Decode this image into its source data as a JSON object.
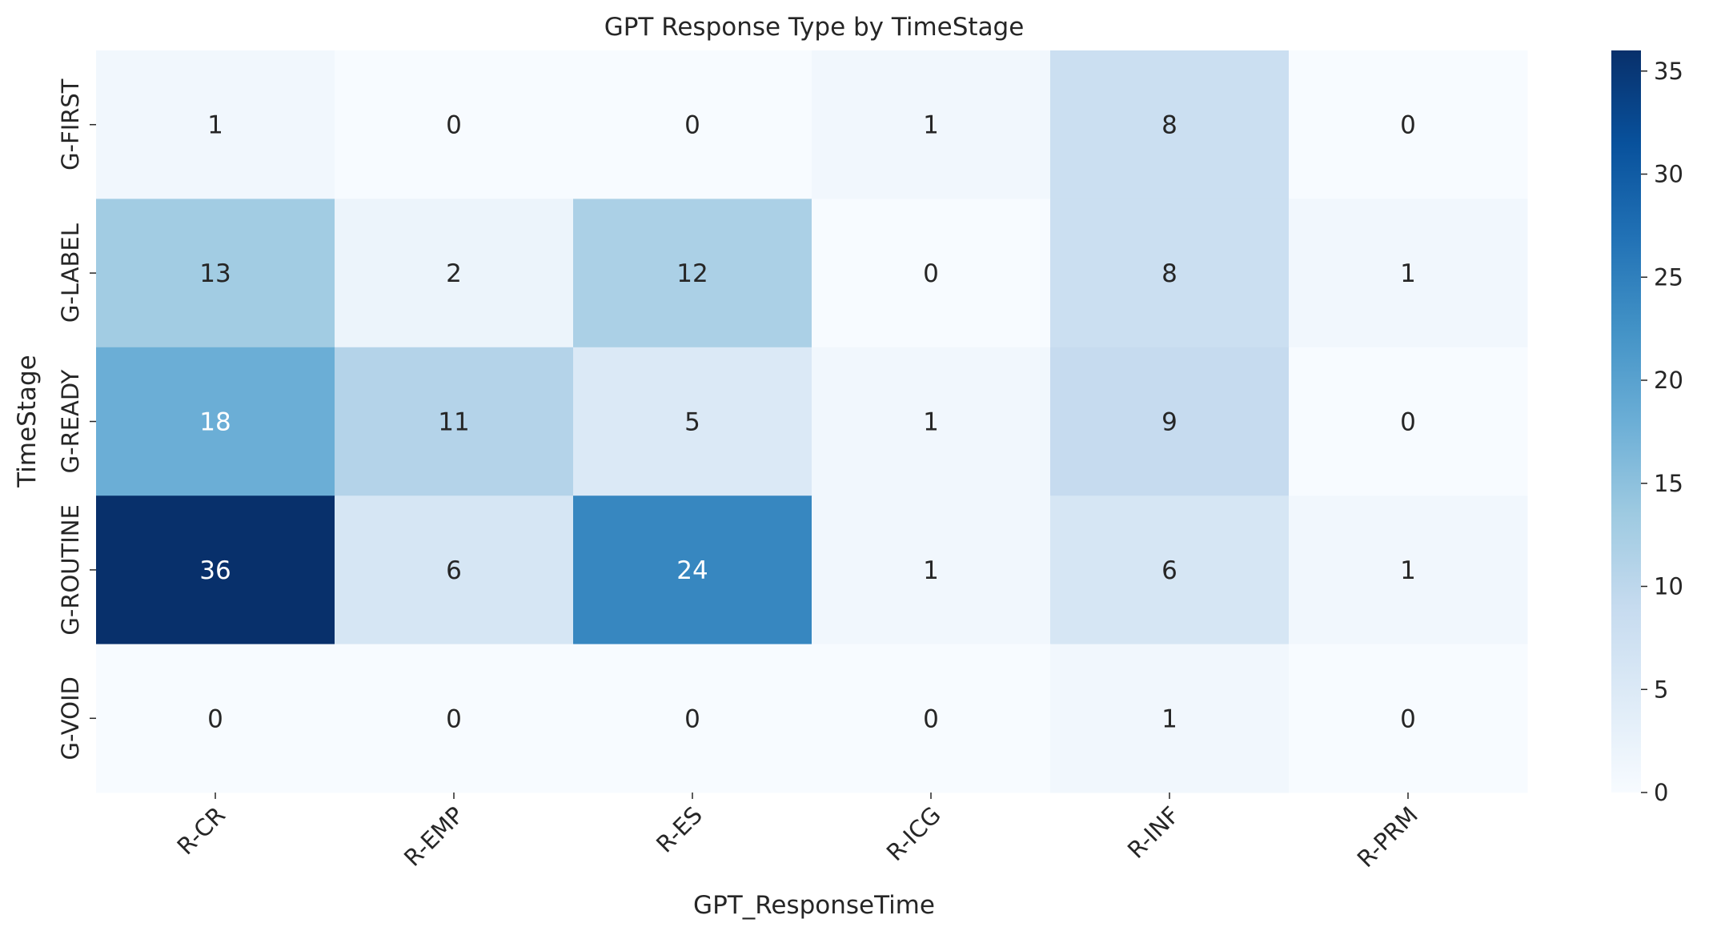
{
  "chart_data": {
    "type": "heatmap",
    "title": "GPT Response Type by TimeStage",
    "xlabel": "GPT_ResponseTime",
    "ylabel": "TimeStage",
    "x_categories": [
      "R-CR",
      "R-EMP",
      "R-ES",
      "R-ICG",
      "R-INF",
      "R-PRM"
    ],
    "y_categories": [
      "G-FIRST",
      "G-LABEL",
      "G-READY",
      "G-ROUTINE",
      "G-VOID"
    ],
    "values": [
      [
        1,
        0,
        0,
        1,
        8,
        0
      ],
      [
        13,
        2,
        12,
        0,
        8,
        1
      ],
      [
        18,
        11,
        5,
        1,
        9,
        0
      ],
      [
        36,
        6,
        24,
        1,
        6,
        1
      ],
      [
        0,
        0,
        0,
        0,
        1,
        0
      ]
    ],
    "colormap": "Blues",
    "colorbar": {
      "min": 0,
      "max": 36,
      "ticks": [
        "0",
        "5",
        "10",
        "15",
        "20",
        "25",
        "30",
        "35"
      ]
    },
    "annotations": true,
    "grid": false
  }
}
